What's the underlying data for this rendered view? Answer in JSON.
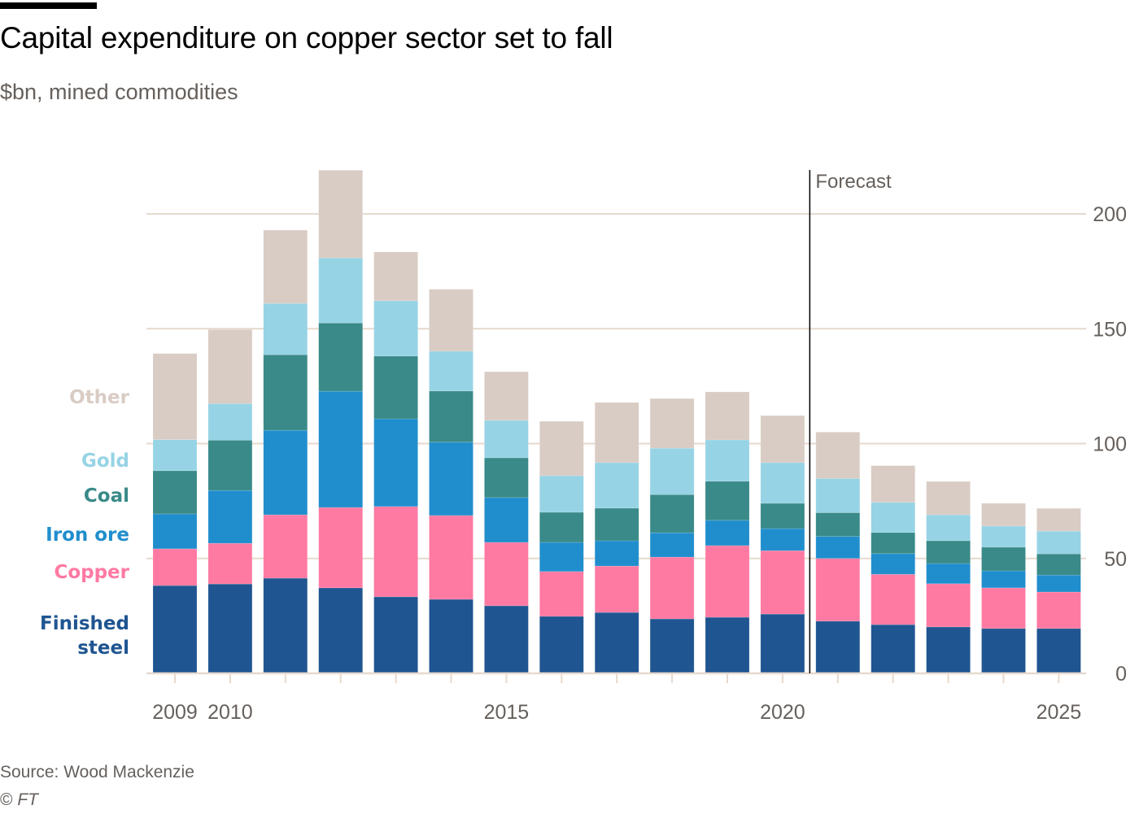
{
  "header": {
    "title": "Capital expenditure on copper sector set to fall",
    "subtitle": "$bn, mined commodities"
  },
  "footer": {
    "source": "Source: Wood Mackenzie",
    "copyright_symbol": "©",
    "copyright_owner": "FT"
  },
  "chart_data": {
    "type": "bar",
    "stacked": true,
    "title": "Capital expenditure on copper sector set to fall",
    "subtitle": "$bn, mined commodities",
    "xlabel": "",
    "ylabel": "$bn",
    "ylim": [
      0,
      220
    ],
    "y_ticks": [
      0,
      50,
      100,
      150,
      200
    ],
    "y_axis_side": "right",
    "grid": true,
    "legend_placement": "left, inline labels",
    "categories": [
      "2009",
      "2010",
      "2011",
      "2012",
      "2013",
      "2014",
      "2015",
      "2016",
      "2017",
      "2018",
      "2019",
      "2020",
      "2021",
      "2022",
      "2023",
      "2024",
      "2025"
    ],
    "x_tick_labels": [
      {
        "category": "2009",
        "label": "2009"
      },
      {
        "category": "2010",
        "label": "2010"
      },
      {
        "category": "2015",
        "label": "2015"
      },
      {
        "category": "2020",
        "label": "2020"
      },
      {
        "category": "2025",
        "label": "2025"
      }
    ],
    "series": [
      {
        "name": "Finished steel",
        "legend_lines": [
          "Finished",
          "steel"
        ],
        "color": "#1F5591",
        "values": [
          38.2,
          38.9,
          41.4,
          37.2,
          33.3,
          32.2,
          29.4,
          24.8,
          26.5,
          23.7,
          24.4,
          25.8,
          22.7,
          21.2,
          20.2,
          19.5,
          19.5
        ]
      },
      {
        "name": "Copper",
        "legend_lines": [
          "Copper"
        ],
        "color": "#FF7AA3",
        "values": [
          16.0,
          17.7,
          27.6,
          35.0,
          39.3,
          36.5,
          27.6,
          19.5,
          20.2,
          26.9,
          31.2,
          27.6,
          27.3,
          21.9,
          18.8,
          17.7,
          15.9
        ]
      },
      {
        "name": "Iron ore",
        "legend_lines": [
          "Iron ore"
        ],
        "color": "#208ECD",
        "values": [
          15.2,
          23.0,
          36.8,
          50.6,
          38.2,
          31.9,
          19.5,
          12.7,
          11.0,
          10.6,
          11.0,
          9.6,
          9.6,
          9.0,
          8.8,
          7.4,
          7.4
        ]
      },
      {
        "name": "Coal",
        "legend_lines": [
          "Coal"
        ],
        "color": "#398A88",
        "values": [
          18.8,
          21.9,
          32.9,
          29.7,
          27.3,
          22.3,
          17.3,
          13.1,
          14.2,
          16.6,
          17.0,
          11.0,
          10.3,
          9.2,
          9.9,
          10.3,
          9.2
        ]
      },
      {
        "name": "Gold",
        "legend_lines": [
          "Gold"
        ],
        "color": "#96D3E5",
        "values": [
          13.5,
          15.9,
          22.3,
          28.3,
          24.1,
          17.3,
          16.3,
          15.9,
          19.8,
          20.2,
          18.0,
          17.7,
          14.9,
          13.1,
          11.3,
          9.2,
          9.9
        ]
      },
      {
        "name": "Other",
        "legend_lines": [
          "Other"
        ],
        "color": "#D9CCC4",
        "values": [
          37.5,
          32.2,
          31.9,
          38.2,
          21.2,
          27.0,
          21.2,
          23.7,
          26.2,
          21.6,
          20.9,
          20.5,
          20.2,
          16.0,
          14.5,
          9.9,
          9.9
        ]
      }
    ],
    "annotations": [
      {
        "type": "vertical-line",
        "between": [
          "2020",
          "2021"
        ],
        "label": "Forecast"
      }
    ],
    "colors": {
      "grid": "#E6D9CE",
      "axis_text": "#66605C",
      "forecast_line": "#000000"
    }
  }
}
